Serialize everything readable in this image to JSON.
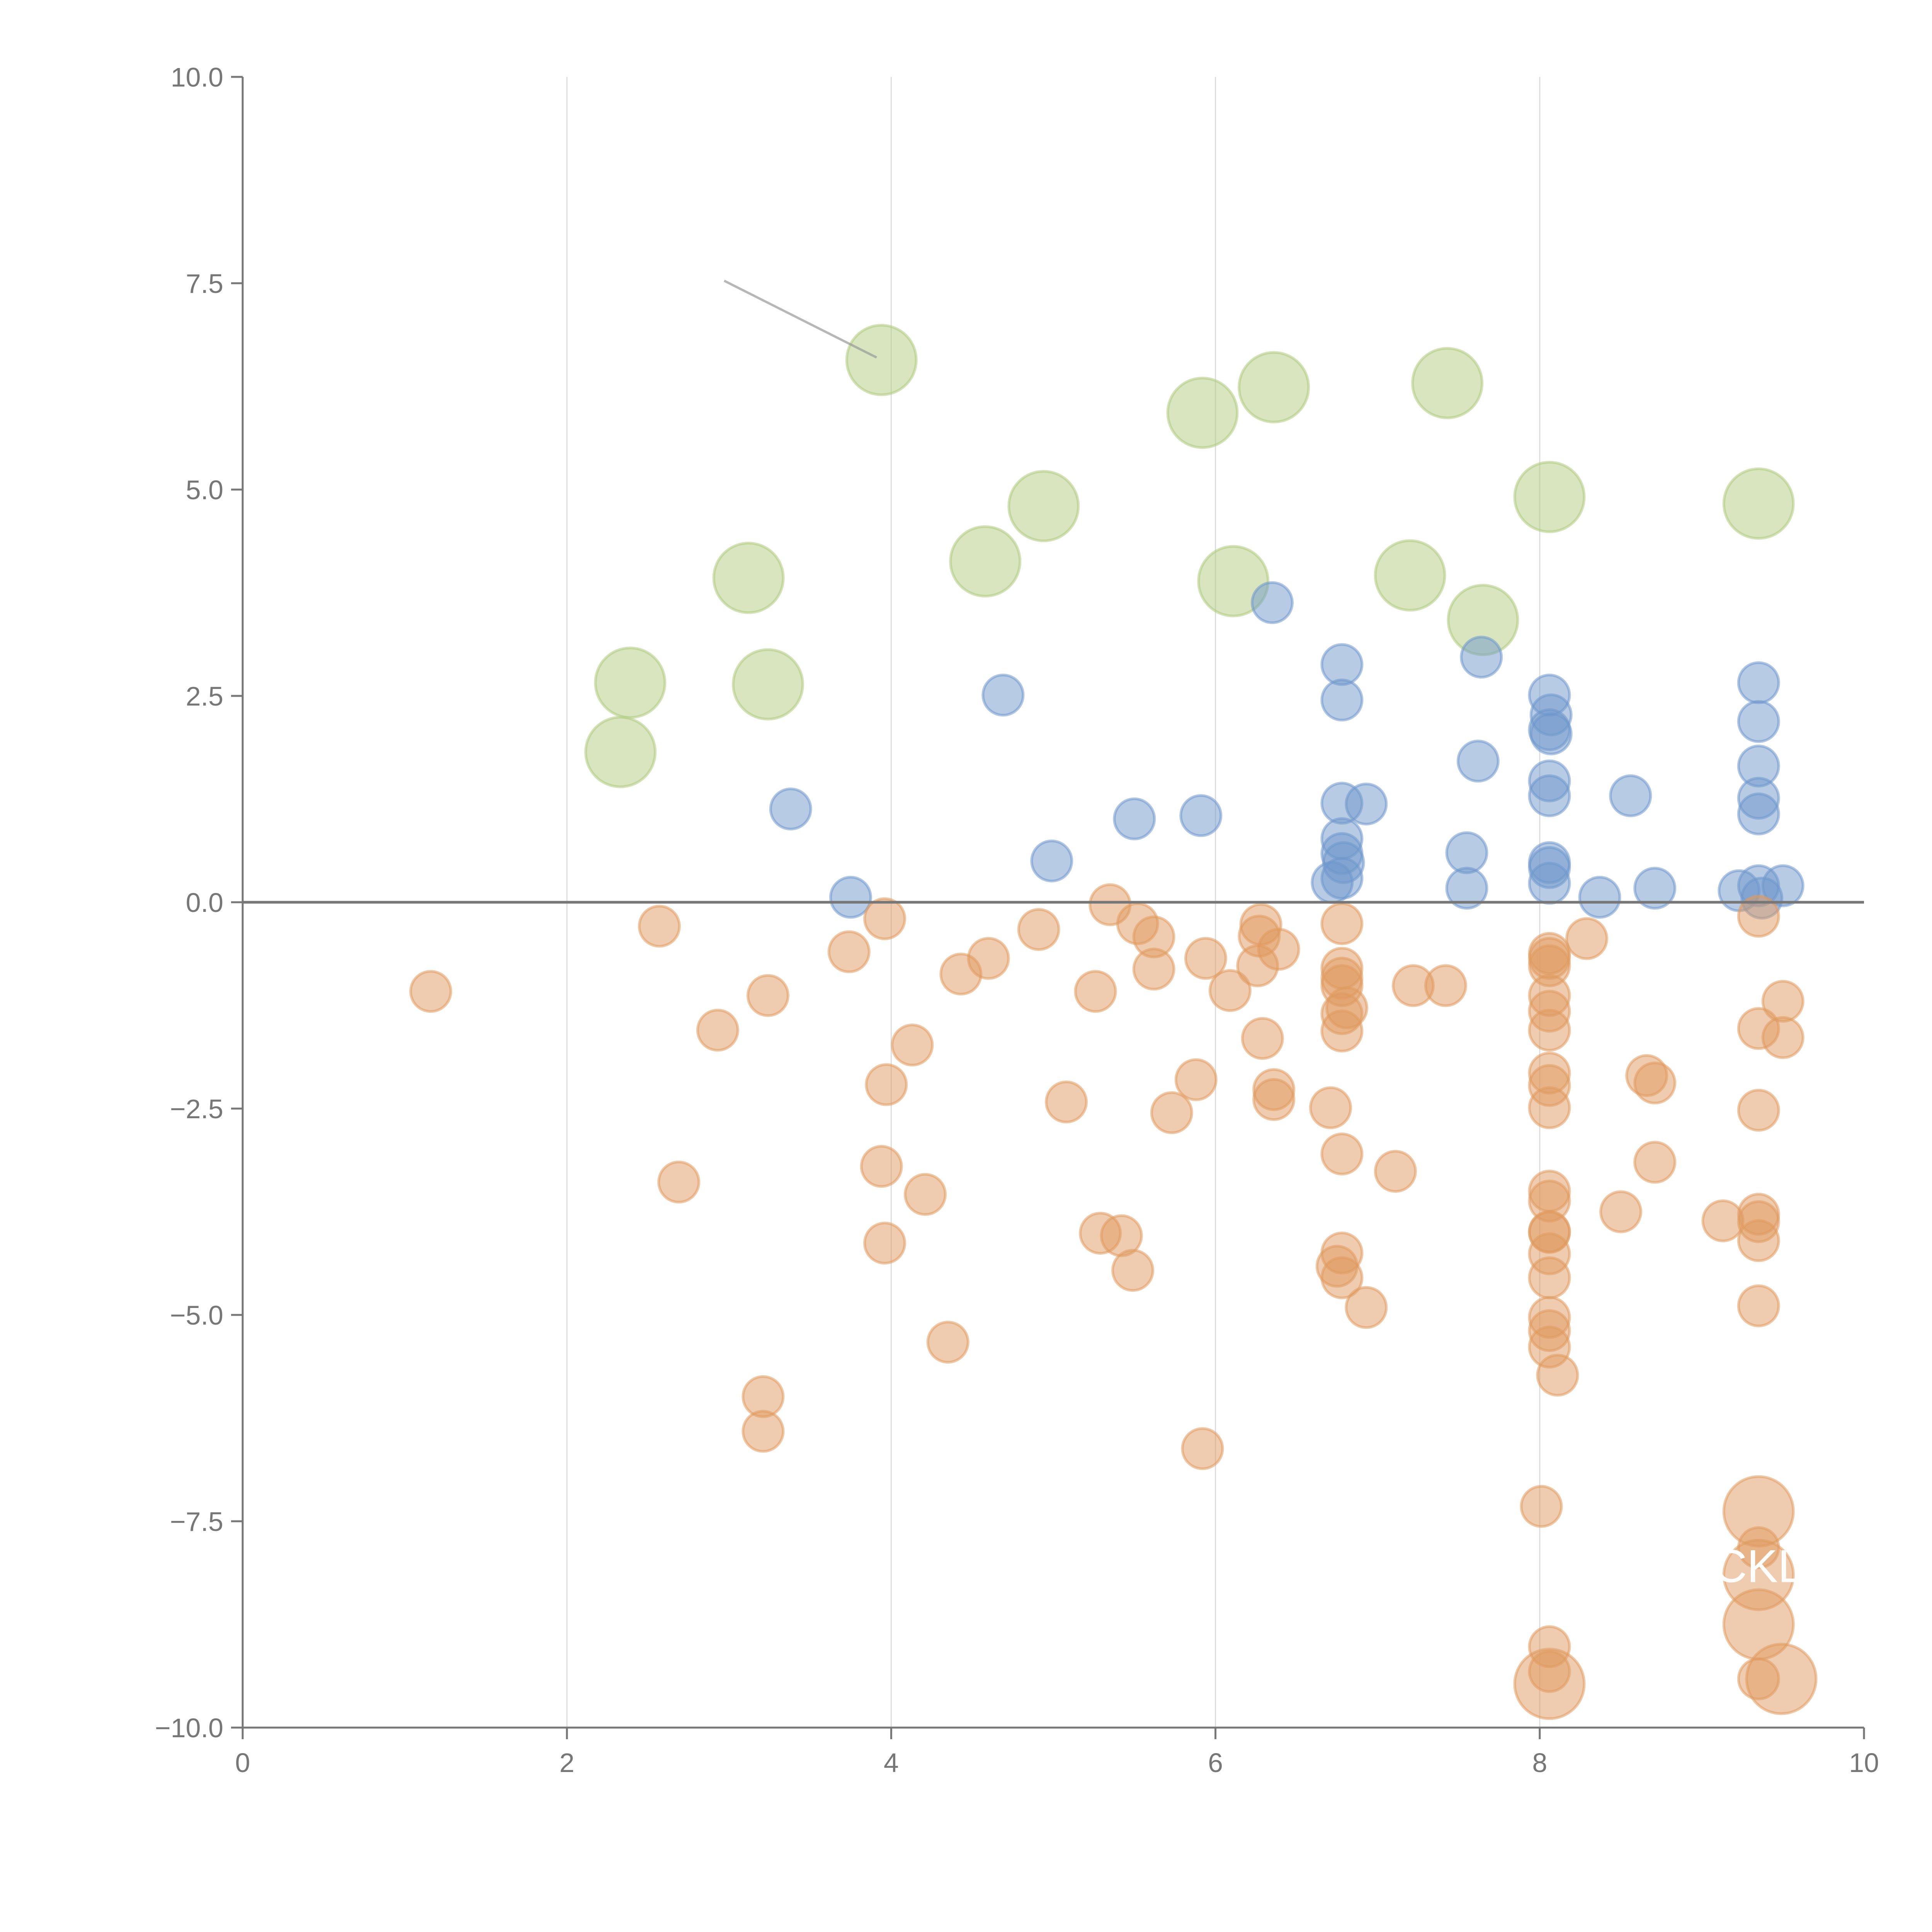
{
  "chart_data": {
    "type": "scatter",
    "title": "",
    "xlabel": "",
    "ylabel": "",
    "xlim": [
      0,
      10
    ],
    "ylim": [
      -10,
      10
    ],
    "xticks": [
      "0",
      "2",
      "4",
      "6",
      "8",
      "10"
    ],
    "xtick_values": [
      0,
      2,
      4,
      6,
      8,
      10
    ],
    "yticks": [
      "10.0",
      "7.5",
      "5.0",
      "2.5",
      "0.0",
      "−2.5",
      "−5.0",
      "−7.5",
      "−10.0"
    ],
    "ytick_values": [
      10,
      7.5,
      5,
      2.5,
      0,
      -2.5,
      -5,
      -7.5,
      -10
    ],
    "grid": "vertical",
    "zero_line": 0,
    "annotation_leader": {
      "from": [
        2.97,
        7.53
      ],
      "to": [
        3.91,
        6.6
      ]
    },
    "labels": [
      {
        "text": "CKL",
        "x": 9.35,
        "y": -8.05
      }
    ],
    "series": [
      {
        "name": "green",
        "color": "#b1cb80",
        "size": 3,
        "points": [
          [
            3.94,
            6.57
          ],
          [
            6.36,
            6.24
          ],
          [
            5.92,
            5.93
          ],
          [
            7.43,
            6.29
          ],
          [
            4.94,
            4.8
          ],
          [
            8.06,
            4.91
          ],
          [
            9.35,
            4.83
          ],
          [
            3.12,
            3.93
          ],
          [
            4.58,
            4.13
          ],
          [
            6.11,
            3.89
          ],
          [
            7.2,
            3.96
          ],
          [
            7.65,
            3.42
          ],
          [
            2.39,
            2.66
          ],
          [
            3.24,
            2.64
          ],
          [
            2.33,
            1.82
          ]
        ]
      },
      {
        "name": "blue",
        "color": "#6f97cc",
        "size": 1,
        "points": [
          [
            6.35,
            3.63
          ],
          [
            6.78,
            2.88
          ],
          [
            6.78,
            2.45
          ],
          [
            4.69,
            2.51
          ],
          [
            7.64,
            2.97
          ],
          [
            8.06,
            2.51
          ],
          [
            8.07,
            2.27
          ],
          [
            8.06,
            2.09
          ],
          [
            8.07,
            2.04
          ],
          [
            9.35,
            2.66
          ],
          [
            9.35,
            2.19
          ],
          [
            7.62,
            1.71
          ],
          [
            9.35,
            1.65
          ],
          [
            8.06,
            1.47
          ],
          [
            8.06,
            1.29
          ],
          [
            8.56,
            1.29
          ],
          [
            9.35,
            1.26
          ],
          [
            9.35,
            1.07
          ],
          [
            3.38,
            1.13
          ],
          [
            5.5,
            1.01
          ],
          [
            5.91,
            1.05
          ],
          [
            6.78,
            1.2
          ],
          [
            6.93,
            1.19
          ],
          [
            6.78,
            0.77
          ],
          [
            6.78,
            0.59
          ],
          [
            6.79,
            0.48
          ],
          [
            6.78,
            0.29
          ],
          [
            6.72,
            0.24
          ],
          [
            4.99,
            0.5
          ],
          [
            7.55,
            0.6
          ],
          [
            7.55,
            0.17
          ],
          [
            8.06,
            0.48
          ],
          [
            8.06,
            0.42
          ],
          [
            8.06,
            0.23
          ],
          [
            8.37,
            0.06
          ],
          [
            8.71,
            0.17
          ],
          [
            9.23,
            0.14
          ],
          [
            9.35,
            0.2
          ],
          [
            9.5,
            0.2
          ],
          [
            9.37,
            0.05
          ],
          [
            3.75,
            0.06
          ]
        ]
      },
      {
        "name": "orange",
        "color": "#e09a5f",
        "size": 1,
        "points": [
          [
            1.16,
            -1.08
          ],
          [
            2.57,
            -0.29
          ],
          [
            2.93,
            -1.55
          ],
          [
            3.24,
            -1.13
          ],
          [
            2.69,
            -3.39
          ],
          [
            3.21,
            -5.99
          ],
          [
            3.21,
            -6.41
          ],
          [
            3.74,
            -0.6
          ],
          [
            3.96,
            -0.2
          ],
          [
            4.13,
            -1.73
          ],
          [
            3.97,
            -2.21
          ],
          [
            3.94,
            -3.2
          ],
          [
            4.21,
            -3.54
          ],
          [
            3.96,
            -4.13
          ],
          [
            4.35,
            -5.33
          ],
          [
            4.43,
            -0.87
          ],
          [
            4.6,
            -0.68
          ],
          [
            4.91,
            -0.33
          ],
          [
            5.26,
            -1.08
          ],
          [
            5.08,
            -2.42
          ],
          [
            5.35,
            -0.03
          ],
          [
            5.52,
            -0.26
          ],
          [
            5.62,
            -0.42
          ],
          [
            5.62,
            -0.81
          ],
          [
            5.29,
            -4.01
          ],
          [
            5.42,
            -4.04
          ],
          [
            5.49,
            -4.46
          ],
          [
            5.73,
            -2.55
          ],
          [
            5.88,
            -2.15
          ],
          [
            5.94,
            -0.68
          ],
          [
            6.09,
            -1.07
          ],
          [
            5.92,
            -6.62
          ],
          [
            6.28,
            -0.27
          ],
          [
            6.27,
            -0.41
          ],
          [
            6.39,
            -0.57
          ],
          [
            6.26,
            -0.77
          ],
          [
            6.29,
            -1.65
          ],
          [
            6.36,
            -2.27
          ],
          [
            6.36,
            -2.39
          ],
          [
            6.71,
            -2.49
          ],
          [
            6.78,
            -0.26
          ],
          [
            6.78,
            -0.8
          ],
          [
            6.78,
            -0.92
          ],
          [
            6.78,
            -1.01
          ],
          [
            6.81,
            -1.28
          ],
          [
            6.78,
            -1.35
          ],
          [
            6.78,
            -1.56
          ],
          [
            6.78,
            -3.05
          ],
          [
            6.78,
            -4.25
          ],
          [
            6.75,
            -4.41
          ],
          [
            6.78,
            -4.55
          ],
          [
            6.93,
            -4.91
          ],
          [
            7.11,
            -3.26
          ],
          [
            7.22,
            -1.01
          ],
          [
            7.42,
            -1.01
          ],
          [
            8.06,
            -0.62
          ],
          [
            8.06,
            -0.68
          ],
          [
            8.06,
            -0.77
          ],
          [
            8.06,
            -1.13
          ],
          [
            8.06,
            -1.32
          ],
          [
            8.06,
            -1.55
          ],
          [
            8.06,
            -2.07
          ],
          [
            8.06,
            -2.22
          ],
          [
            8.06,
            -2.49
          ],
          [
            8.06,
            -3.5
          ],
          [
            8.06,
            -3.62
          ],
          [
            8.06,
            -3.99
          ],
          [
            8.06,
            -4.0
          ],
          [
            8.06,
            -4.26
          ],
          [
            8.06,
            -4.55
          ],
          [
            8.06,
            -5.03
          ],
          [
            8.06,
            -5.19
          ],
          [
            8.06,
            -5.39
          ],
          [
            8.11,
            -5.73
          ],
          [
            8.29,
            -0.44
          ],
          [
            8.66,
            -2.1
          ],
          [
            8.71,
            -2.19
          ],
          [
            8.71,
            -3.15
          ],
          [
            8.5,
            -3.75
          ],
          [
            9.13,
            -3.86
          ],
          [
            9.35,
            -0.17
          ],
          [
            9.35,
            -1.53
          ],
          [
            9.5,
            -1.2
          ],
          [
            9.5,
            -1.64
          ],
          [
            9.35,
            -2.52
          ],
          [
            9.35,
            -3.78
          ],
          [
            9.35,
            -3.87
          ],
          [
            9.35,
            -4.1
          ],
          [
            9.35,
            -4.89
          ],
          [
            8.01,
            -7.32
          ],
          [
            8.06,
            -9.02
          ],
          [
            8.06,
            -9.32
          ],
          [
            9.35,
            -9.41
          ],
          [
            9.35,
            -7.82
          ]
        ]
      },
      {
        "name": "orange-large",
        "color": "#e09a5f",
        "size": 3,
        "points": [
          [
            9.35,
            -7.38
          ],
          [
            9.35,
            -8.15
          ],
          [
            9.35,
            -8.75
          ],
          [
            8.06,
            -9.47
          ],
          [
            9.49,
            -9.41
          ]
        ]
      }
    ]
  }
}
